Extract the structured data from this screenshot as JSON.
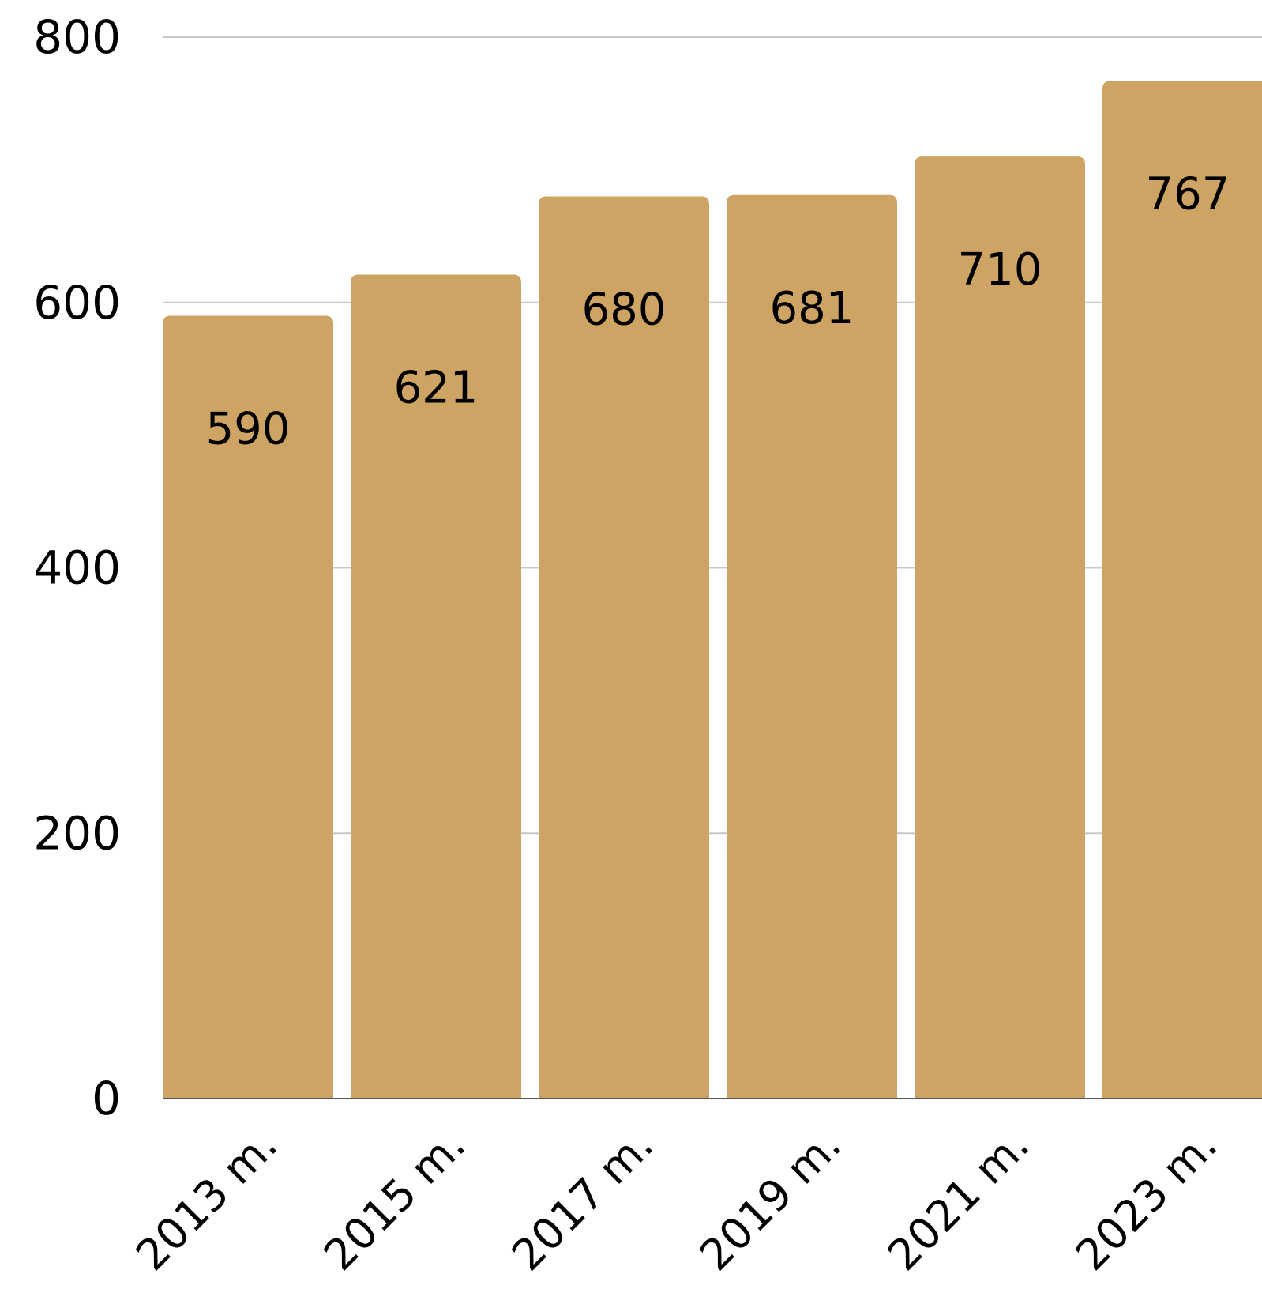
{
  "chart_data": {
    "type": "bar",
    "categories": [
      "2013 m.",
      "2015 m.",
      "2017 m.",
      "2019 m.",
      "2021 m.",
      "2023 m."
    ],
    "values": [
      590,
      621,
      680,
      681,
      710,
      767
    ],
    "data_labels": [
      "590",
      "621",
      "680",
      "681",
      "710",
      "767"
    ],
    "ylim": [
      0,
      800
    ],
    "yticks": [
      0,
      200,
      400,
      600,
      800
    ],
    "ytick_labels": [
      "0",
      "200",
      "400",
      "600",
      "800"
    ],
    "grid": true,
    "title": "",
    "xlabel": "",
    "ylabel": ""
  },
  "colors": {
    "bar": "#CEA464",
    "grid": "#C8C8C8",
    "axis": "#555555",
    "text": "#000000"
  }
}
